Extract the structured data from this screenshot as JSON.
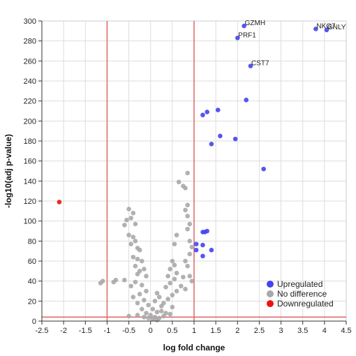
{
  "chart_data": {
    "type": "scatter",
    "xlabel": "log fold change",
    "ylabel": "-log10(adj p-value)",
    "xlim": [
      -2.5,
      4.5
    ],
    "ylim": [
      0,
      300
    ],
    "x_ticks": [
      -2.5,
      -2.0,
      -1.5,
      -1.0,
      -0.5,
      0.0,
      0.5,
      1.0,
      1.5,
      2.0,
      2.5,
      3.0,
      3.5,
      4.0,
      4.5
    ],
    "y_ticks": [
      0,
      20,
      40,
      60,
      80,
      100,
      120,
      140,
      160,
      180,
      200,
      220,
      240,
      260,
      280,
      300
    ],
    "grid": true,
    "thresholds": {
      "logfc": [
        -1,
        1
      ],
      "neg_log10_p": 4
    },
    "legend_position": "bottom-right",
    "series": [
      {
        "name": "Upregulated",
        "color": "#4444ee",
        "points": [
          [
            2.15,
            295
          ],
          [
            3.8,
            292
          ],
          [
            4.05,
            291
          ],
          [
            2.0,
            283
          ],
          [
            2.3,
            255
          ],
          [
            2.2,
            221
          ],
          [
            1.55,
            211
          ],
          [
            1.3,
            209
          ],
          [
            1.2,
            206
          ],
          [
            1.6,
            185
          ],
          [
            1.95,
            182
          ],
          [
            1.4,
            177
          ],
          [
            2.6,
            152
          ],
          [
            1.2,
            89
          ],
          [
            1.25,
            89
          ],
          [
            1.3,
            90
          ],
          [
            1.05,
            77
          ],
          [
            1.2,
            76
          ],
          [
            1.05,
            71
          ],
          [
            1.4,
            71
          ],
          [
            1.2,
            65
          ]
        ]
      },
      {
        "name": "No difference",
        "color": "#a8a8a8",
        "points": [
          [
            0.85,
            148
          ],
          [
            0.65,
            139
          ],
          [
            0.75,
            135
          ],
          [
            0.8,
            133
          ],
          [
            0.85,
            116
          ],
          [
            0.8,
            111
          ],
          [
            0.85,
            105
          ],
          [
            0.9,
            97
          ],
          [
            0.85,
            92
          ],
          [
            0.6,
            86
          ],
          [
            0.9,
            80
          ],
          [
            0.55,
            77
          ],
          [
            0.95,
            74
          ],
          [
            0.9,
            67
          ],
          [
            0.8,
            60
          ],
          [
            0.85,
            55
          ],
          [
            0.75,
            44
          ],
          [
            0.9,
            45
          ],
          [
            0.95,
            40
          ],
          [
            0.7,
            35
          ],
          [
            0.8,
            32
          ],
          [
            -0.5,
            112
          ],
          [
            -0.4,
            108
          ],
          [
            -0.45,
            103
          ],
          [
            -0.55,
            101
          ],
          [
            -0.35,
            97
          ],
          [
            -0.6,
            96
          ],
          [
            -0.5,
            86
          ],
          [
            -0.4,
            84
          ],
          [
            -0.35,
            80
          ],
          [
            -0.45,
            77
          ],
          [
            -0.3,
            73
          ],
          [
            -0.25,
            71
          ],
          [
            -0.4,
            64
          ],
          [
            -0.3,
            62
          ],
          [
            -0.2,
            60
          ],
          [
            -0.35,
            55
          ],
          [
            -0.15,
            52
          ],
          [
            -0.25,
            50
          ],
          [
            -0.3,
            47
          ],
          [
            -0.1,
            45
          ],
          [
            -0.6,
            41
          ],
          [
            -0.35,
            39
          ],
          [
            -0.2,
            36
          ],
          [
            -0.45,
            35
          ],
          [
            -0.1,
            30
          ],
          [
            -0.25,
            27
          ],
          [
            -0.4,
            24
          ],
          [
            -0.15,
            21
          ],
          [
            -0.3,
            18
          ],
          [
            -0.05,
            16
          ],
          [
            -0.2,
            12
          ],
          [
            -0.1,
            8
          ],
          [
            -0.3,
            6
          ],
          [
            -0.5,
            5
          ],
          [
            -0.8,
            41
          ],
          [
            -0.85,
            39
          ],
          [
            -1.1,
            40
          ],
          [
            -1.15,
            38
          ],
          [
            0.5,
            60
          ],
          [
            0.55,
            56
          ],
          [
            0.45,
            52
          ],
          [
            0.6,
            48
          ],
          [
            0.4,
            45
          ],
          [
            0.55,
            42
          ],
          [
            0.45,
            38
          ],
          [
            0.35,
            34
          ],
          [
            0.6,
            30
          ],
          [
            0.5,
            26
          ],
          [
            0.4,
            22
          ],
          [
            0.3,
            18
          ],
          [
            0.5,
            14
          ],
          [
            0.25,
            10
          ],
          [
            0.45,
            7
          ],
          [
            0.15,
            28
          ],
          [
            0.2,
            24
          ],
          [
            0.1,
            20
          ],
          [
            0.25,
            15
          ],
          [
            0.05,
            12
          ],
          [
            0.15,
            9
          ],
          [
            0.0,
            6
          ],
          [
            0.1,
            4
          ],
          [
            0.2,
            3
          ],
          [
            -0.05,
            3
          ],
          [
            0.3,
            5
          ],
          [
            0.35,
            8
          ],
          [
            -0.15,
            4
          ],
          [
            0.05,
            2
          ],
          [
            0.15,
            1
          ]
        ]
      },
      {
        "name": "Downregulated",
        "color": "#ee1111",
        "points": [
          [
            -2.1,
            119
          ]
        ]
      }
    ],
    "annotations": [
      {
        "text": "GZMH",
        "x": 2.15,
        "y": 295
      },
      {
        "text": "NKG7",
        "x": 3.8,
        "y": 292
      },
      {
        "text": "GNLY",
        "x": 4.05,
        "y": 291
      },
      {
        "text": "PRF1",
        "x": 2.0,
        "y": 283
      },
      {
        "text": "CST7",
        "x": 2.3,
        "y": 255
      }
    ]
  }
}
